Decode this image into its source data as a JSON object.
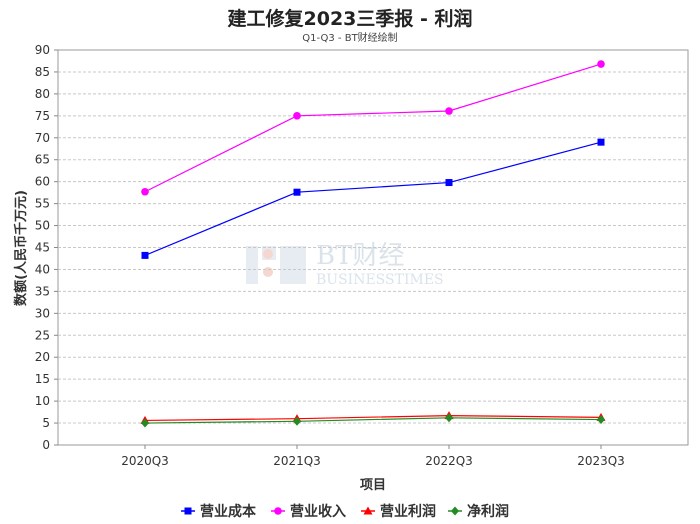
{
  "chart_data": {
    "type": "line",
    "title": "建工修复2023三季报 - 利润",
    "subtitle": "Q1-Q3 - BT财经绘制",
    "xlabel": "项目",
    "ylabel": "数额(人民币千万元)",
    "categories": [
      "2020Q3",
      "2021Q3",
      "2022Q3",
      "2023Q3"
    ],
    "ylim": [
      0,
      90
    ],
    "yticks": [
      0,
      5,
      10,
      15,
      20,
      25,
      30,
      35,
      40,
      45,
      50,
      55,
      60,
      65,
      70,
      75,
      80,
      85,
      90
    ],
    "grid": true,
    "legend_position": "bottom",
    "series": [
      {
        "name": "营业成本",
        "color": "#0000ff",
        "marker": "square",
        "values": [
          43.2,
          57.6,
          59.8,
          69.0
        ]
      },
      {
        "name": "营业收入",
        "color": "#ff00ff",
        "marker": "circle",
        "values": [
          57.7,
          75.0,
          76.1,
          86.8
        ]
      },
      {
        "name": "营业利润",
        "color": "#ff0000",
        "marker": "triangle",
        "values": [
          5.6,
          6.0,
          6.7,
          6.3
        ]
      },
      {
        "name": "净利润",
        "color": "#228b22",
        "marker": "diamond",
        "values": [
          5.0,
          5.4,
          6.2,
          5.8
        ]
      }
    ]
  },
  "watermark": {
    "brand": "BT财经",
    "tagline": "BUSINESSTIMES"
  }
}
